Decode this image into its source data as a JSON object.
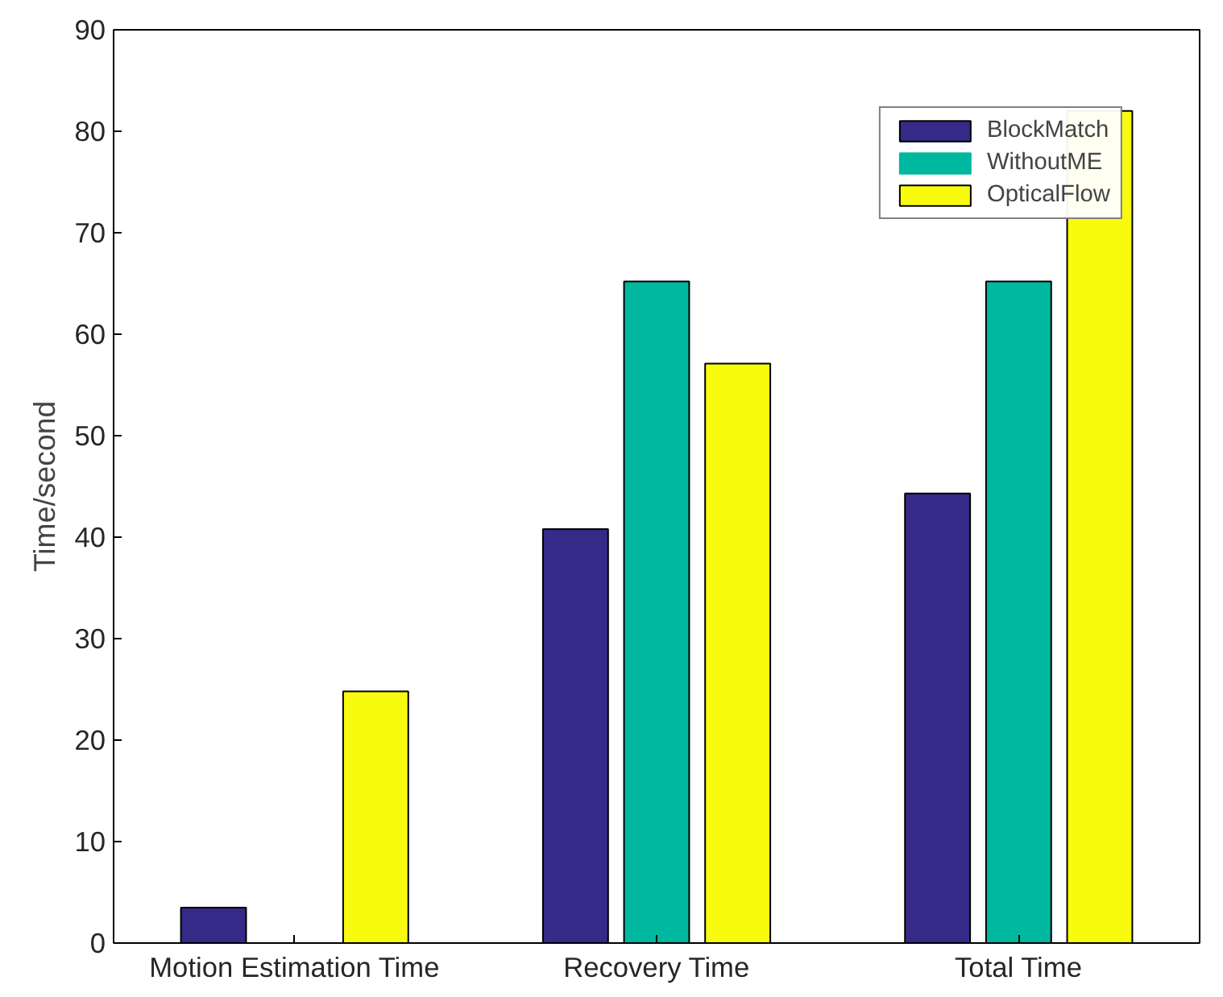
{
  "chart_data": {
    "type": "bar",
    "ylabel": "Time/second",
    "categories": [
      "Motion Estimation Time",
      "Recovery Time",
      "Total Time"
    ],
    "series": [
      {
        "name": "BlockMatch",
        "color": "#352a87",
        "values": [
          3.5,
          40.8,
          44.3
        ]
      },
      {
        "name": "WithoutME",
        "color": "#00b89f",
        "values": [
          0,
          65.2,
          65.2
        ]
      },
      {
        "name": "OpticalFlow",
        "color": "#f9fb0e",
        "values": [
          24.8,
          57.1,
          82
        ]
      }
    ],
    "ylim": [
      0,
      90
    ],
    "yticks": [
      0,
      10,
      20,
      30,
      40,
      50,
      60,
      70,
      80,
      90
    ],
    "grid": false,
    "legend": "top right"
  }
}
